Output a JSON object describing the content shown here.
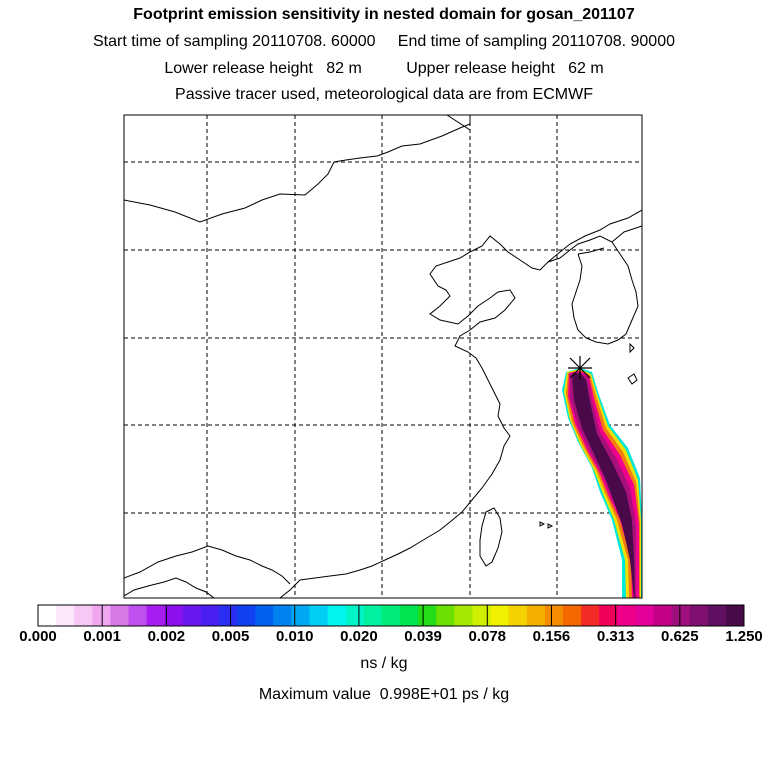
{
  "header": {
    "title": "Footprint emission sensitivity in nested domain for gosan_201107",
    "line2": "Start time of sampling 20110708. 60000     End time of sampling 20110708. 90000",
    "line3": "Lower release height   82 m          Upper release height   62 m",
    "line4": "Passive tracer used, meteorological data are from ECMWF"
  },
  "colorbar": {
    "labels": [
      "0.000",
      "0.001",
      "0.002",
      "0.005",
      "0.010",
      "0.020",
      "0.039",
      "0.078",
      "0.156",
      "0.313",
      "0.625",
      "1.250"
    ],
    "colors": [
      "#ffffff",
      "#fbe6fb",
      "#f6c8f6",
      "#f0a6f0",
      "#d77ae8",
      "#c050ee",
      "#a81ef2",
      "#8c10ee",
      "#6a18ee",
      "#4a20f2",
      "#2a2ef2",
      "#1040f0",
      "#0060f0",
      "#0082f0",
      "#00a8f4",
      "#00cef4",
      "#00f4f0",
      "#00f4c8",
      "#00f0a0",
      "#00ec78",
      "#00e450",
      "#24dc18",
      "#6ce000",
      "#a4e800",
      "#d0ee00",
      "#f0f000",
      "#f4d200",
      "#f4b000",
      "#f48c00",
      "#f46800",
      "#f42c28",
      "#f00058",
      "#f0008a",
      "#e4009a",
      "#c40088",
      "#a0107c",
      "#801070",
      "#601060",
      "#480a48"
    ],
    "unit": "ns / kg",
    "max_value_text": "Maximum value  0.998E+01 ps / kg"
  },
  "icons": {
    "release_site": "star-marker-icon"
  }
}
